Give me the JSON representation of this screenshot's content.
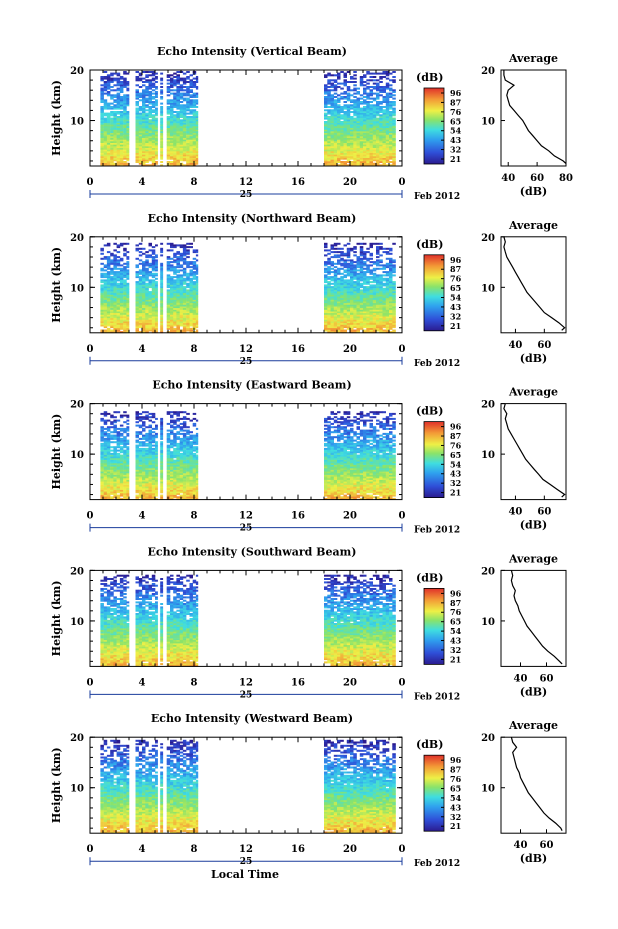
{
  "figure": {
    "x_axis_label": "Local Time",
    "date_label": "Feb 2012",
    "day_label": "25",
    "colorbar_unit": "(dB)",
    "avg_title": "Average",
    "avg_xlabel": "(dB)",
    "height_label": "Height (km)"
  },
  "chart_data": [
    {
      "type": "heatmap",
      "title": "Echo Intensity (Vertical Beam)",
      "ylabel": "Height (km)",
      "xlabel": "Local Time",
      "x_ticks": [
        "0",
        "4",
        "8",
        "12",
        "16",
        "20",
        "0"
      ],
      "xlim": [
        0,
        24
      ],
      "y_ticks": [
        "20",
        "10"
      ],
      "ylim": [
        1,
        20
      ],
      "data_segments_hours": [
        [
          0.8,
          3.0
        ],
        [
          3.5,
          5.2
        ],
        [
          5.4,
          5.6
        ],
        [
          5.9,
          8.3
        ],
        [
          18.0,
          23.5
        ]
      ],
      "colorbar": {
        "ticks": [
          "96",
          "87",
          "76",
          "65",
          "54",
          "43",
          "32",
          "21"
        ],
        "range": [
          21,
          96
        ]
      },
      "average_profile": {
        "xlim": [
          35,
          80
        ],
        "x_ticks": [
          "40",
          "60",
          "80"
        ],
        "ylim": [
          1,
          20
        ],
        "height_km": [
          1.5,
          2,
          3,
          4,
          5,
          6,
          7,
          8,
          9,
          10,
          11,
          12,
          13,
          14,
          15,
          16,
          17,
          18,
          19,
          20
        ],
        "db": [
          80,
          78,
          72,
          68,
          63,
          60,
          57,
          54,
          52,
          50,
          47,
          44,
          41,
          40,
          39,
          40,
          44,
          38,
          37,
          37
        ]
      }
    },
    {
      "type": "heatmap",
      "title": "Echo Intensity (Northward Beam)",
      "ylabel": "Height (km)",
      "xlabel": "Local Time",
      "x_ticks": [
        "0",
        "4",
        "8",
        "12",
        "16",
        "20",
        "0"
      ],
      "xlim": [
        0,
        24
      ],
      "y_ticks": [
        "20",
        "10"
      ],
      "ylim": [
        1,
        20
      ],
      "data_segments_hours": [
        [
          0.8,
          3.0
        ],
        [
          3.5,
          5.2
        ],
        [
          5.4,
          5.6
        ],
        [
          5.9,
          8.3
        ],
        [
          18.0,
          23.5
        ]
      ],
      "colorbar": {
        "ticks": [
          "96",
          "87",
          "76",
          "65",
          "54",
          "43",
          "32",
          "21"
        ],
        "range": [
          21,
          96
        ]
      },
      "average_profile": {
        "xlim": [
          30,
          75
        ],
        "x_ticks": [
          "40",
          "60"
        ],
        "ylim": [
          1,
          20
        ],
        "height_km": [
          1.5,
          2,
          3,
          4,
          5,
          6,
          7,
          8,
          9,
          10,
          11,
          12,
          13,
          14,
          15,
          16,
          17,
          18,
          19,
          20
        ],
        "db": [
          72,
          74,
          70,
          65,
          60,
          57,
          54,
          51,
          48,
          46,
          44,
          42,
          40,
          38,
          36,
          34,
          33,
          32,
          33,
          32
        ]
      }
    },
    {
      "type": "heatmap",
      "title": "Echo Intensity (Eastward Beam)",
      "ylabel": "Height (km)",
      "xlabel": "Local Time",
      "x_ticks": [
        "0",
        "4",
        "8",
        "12",
        "16",
        "20",
        "0"
      ],
      "xlim": [
        0,
        24
      ],
      "y_ticks": [
        "20",
        "10"
      ],
      "ylim": [
        1,
        20
      ],
      "data_segments_hours": [
        [
          0.8,
          3.0
        ],
        [
          3.5,
          5.2
        ],
        [
          5.4,
          5.6
        ],
        [
          5.9,
          8.3
        ],
        [
          18.0,
          23.5
        ]
      ],
      "colorbar": {
        "ticks": [
          "96",
          "87",
          "76",
          "65",
          "54",
          "43",
          "32",
          "21"
        ],
        "range": [
          21,
          96
        ]
      },
      "average_profile": {
        "xlim": [
          30,
          75
        ],
        "x_ticks": [
          "40",
          "60"
        ],
        "ylim": [
          1,
          20
        ],
        "height_km": [
          1.5,
          2,
          3,
          4,
          5,
          6,
          7,
          8,
          9,
          10,
          11,
          12,
          13,
          14,
          15,
          16,
          17,
          18,
          19,
          20
        ],
        "db": [
          72,
          74,
          69,
          64,
          59,
          56,
          53,
          50,
          47,
          45,
          43,
          41,
          39,
          37,
          35,
          34,
          33,
          34,
          32,
          33
        ]
      }
    },
    {
      "type": "heatmap",
      "title": "Echo Intensity (Southward Beam)",
      "ylabel": "Height (km)",
      "xlabel": "Local Time",
      "x_ticks": [
        "0",
        "4",
        "8",
        "12",
        "16",
        "20",
        "0"
      ],
      "xlim": [
        0,
        24
      ],
      "y_ticks": [
        "20",
        "10"
      ],
      "ylim": [
        1,
        20
      ],
      "data_segments_hours": [
        [
          0.8,
          3.0
        ],
        [
          3.5,
          5.2
        ],
        [
          5.4,
          5.6
        ],
        [
          5.9,
          8.3
        ],
        [
          18.0,
          23.5
        ]
      ],
      "colorbar": {
        "ticks": [
          "96",
          "87",
          "76",
          "65",
          "54",
          "43",
          "32",
          "21"
        ],
        "range": [
          21,
          96
        ]
      },
      "average_profile": {
        "xlim": [
          25,
          75
        ],
        "x_ticks": [
          "40",
          "60"
        ],
        "ylim": [
          1,
          20
        ],
        "height_km": [
          1.5,
          2,
          3,
          4,
          5,
          6,
          7,
          8,
          9,
          10,
          11,
          12,
          13,
          14,
          15,
          16,
          17,
          18,
          19,
          20
        ],
        "db": [
          72,
          70,
          66,
          61,
          57,
          54,
          51,
          48,
          45,
          43,
          41,
          39,
          38,
          36,
          35,
          36,
          34,
          33,
          34,
          33
        ]
      }
    },
    {
      "type": "heatmap",
      "title": "Echo Intensity (Westward Beam)",
      "ylabel": "Height (km)",
      "xlabel": "Local Time",
      "x_ticks": [
        "0",
        "4",
        "8",
        "12",
        "16",
        "20",
        "0"
      ],
      "xlim": [
        0,
        24
      ],
      "y_ticks": [
        "20",
        "10"
      ],
      "ylim": [
        1,
        20
      ],
      "data_segments_hours": [
        [
          0.8,
          3.0
        ],
        [
          3.5,
          5.2
        ],
        [
          5.4,
          5.6
        ],
        [
          5.9,
          8.3
        ],
        [
          18.0,
          23.5
        ]
      ],
      "colorbar": {
        "ticks": [
          "96",
          "87",
          "76",
          "65",
          "54",
          "43",
          "32",
          "21"
        ],
        "range": [
          21,
          96
        ]
      },
      "average_profile": {
        "xlim": [
          25,
          75
        ],
        "x_ticks": [
          "40",
          "60"
        ],
        "ylim": [
          1,
          20
        ],
        "height_km": [
          1.5,
          2,
          3,
          4,
          5,
          6,
          7,
          8,
          9,
          10,
          11,
          12,
          13,
          14,
          15,
          16,
          17,
          18,
          19,
          20
        ],
        "db": [
          72,
          71,
          67,
          62,
          58,
          55,
          52,
          49,
          46,
          44,
          42,
          40,
          39,
          37,
          36,
          35,
          34,
          37,
          34,
          33
        ]
      }
    }
  ]
}
